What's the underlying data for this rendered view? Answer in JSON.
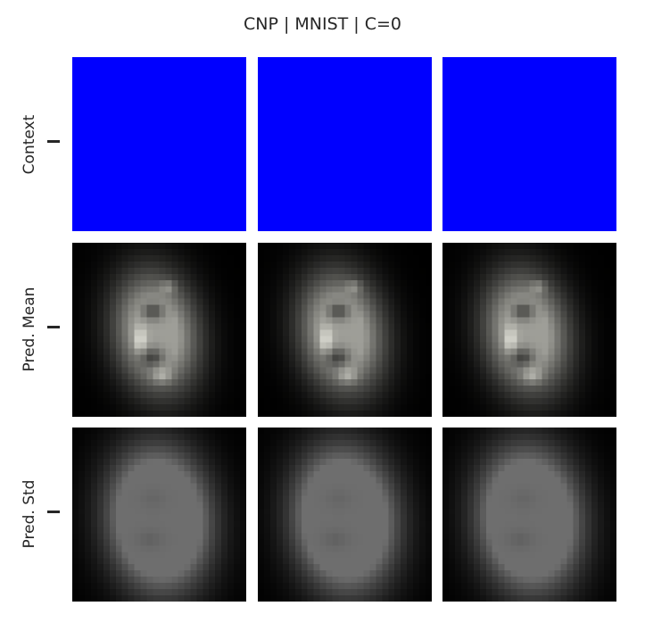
{
  "figure": {
    "title": "CNP | MNIST | C=0",
    "rows": [
      {
        "label": "Context",
        "kind": "context",
        "fill_color": "#0000ff",
        "tick_label": ""
      },
      {
        "label": "Pred. Mean",
        "kind": "mean",
        "tick_label": ""
      },
      {
        "label": "Pred. Std",
        "kind": "std",
        "tick_label": ""
      }
    ],
    "columns": 3,
    "image_resolution": 28,
    "colors": {
      "background": "#ffffff",
      "image_background": "#000000",
      "mean_gray": "#8f8f8f",
      "std_gray": "#6b6b6b",
      "text": "#262626"
    }
  }
}
